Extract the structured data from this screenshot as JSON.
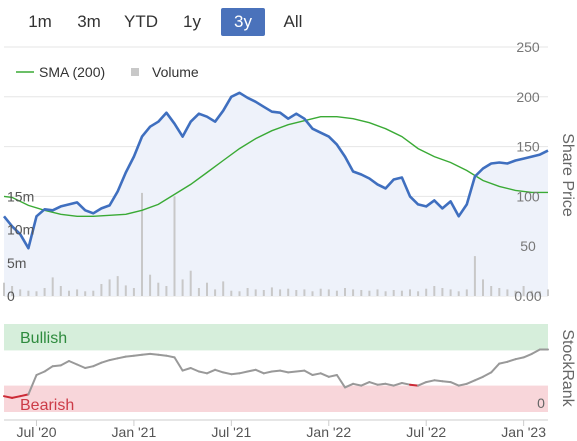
{
  "range_selector": {
    "buttons": [
      {
        "label": "1m",
        "active": false
      },
      {
        "label": "3m",
        "active": false
      },
      {
        "label": "YTD",
        "active": false
      },
      {
        "label": "1y",
        "active": false
      },
      {
        "label": "3y",
        "active": true
      },
      {
        "label": "All",
        "active": false
      }
    ]
  },
  "colors": {
    "price": "#3f6fbf",
    "sma": "#3aaa35",
    "volume": "#c8c8c8",
    "grid": "#e6e6e6",
    "price_area": "#eef2fa",
    "bullish_band": "#d6eedb",
    "bearish_band": "#f8d6da",
    "rank_neutral": "#999999",
    "rank_bearish": "#cc2a36",
    "bullish_text": "#2e8b3e",
    "bearish_text": "#cc3b47"
  },
  "chart_data": [
    {
      "type": "line",
      "legend": {
        "placement": "top-left",
        "items": [
          {
            "label": "SMA (200)",
            "marker": "line"
          },
          {
            "label": "Volume",
            "marker": "square"
          }
        ]
      },
      "y_right": {
        "label": "Share Price",
        "ticks": [
          "250",
          "200",
          "150",
          "100",
          "50",
          "0.00"
        ],
        "range": [
          0,
          250
        ]
      },
      "volume_axis": {
        "ticks": [
          "15m",
          "10m",
          "5m",
          "0"
        ],
        "range": [
          0,
          20
        ]
      },
      "x_axis": {
        "ticks": [
          "Jul '20",
          "Jan '21",
          "Jul '21",
          "Jan '22",
          "Jul '22",
          "Jan '23"
        ],
        "tick_positions": [
          0.5,
          6.5,
          12.5,
          18.5,
          24.5,
          30.5
        ],
        "range": [
          -1.5,
          32
        ]
      },
      "grid": true,
      "series": [
        {
          "name": "Price",
          "x": [
            -1.5,
            -1.0,
            -0.5,
            0.0,
            0.5,
            1.0,
            1.5,
            2.0,
            2.5,
            3.0,
            3.5,
            4.0,
            4.5,
            5.0,
            5.5,
            6.0,
            6.5,
            7.0,
            7.5,
            8.0,
            8.5,
            9.0,
            9.5,
            10.0,
            10.5,
            11.0,
            11.5,
            12.0,
            12.5,
            13.0,
            13.5,
            14.0,
            14.5,
            15.0,
            15.5,
            16.0,
            16.5,
            17.0,
            17.5,
            18.0,
            18.5,
            19.0,
            19.5,
            20.0,
            20.5,
            21.0,
            21.5,
            22.0,
            22.5,
            23.0,
            23.5,
            24.0,
            24.5,
            25.0,
            25.5,
            26.0,
            26.5,
            27.0,
            27.5,
            28.0,
            28.5,
            29.0,
            29.5,
            30.0,
            30.5,
            31.0,
            31.5,
            32.0
          ],
          "values": [
            80,
            70,
            62,
            48,
            80,
            87,
            86,
            90,
            92,
            94,
            86,
            83,
            88,
            91,
            105,
            124,
            140,
            160,
            170,
            175,
            184,
            173,
            160,
            175,
            183,
            180,
            175,
            186,
            200,
            204,
            199,
            195,
            190,
            185,
            184,
            178,
            183,
            178,
            168,
            164,
            160,
            152,
            140,
            125,
            122,
            118,
            112,
            108,
            117,
            119,
            100,
            92,
            90,
            96,
            88,
            95,
            80,
            92,
            120,
            128,
            133,
            134,
            133,
            136,
            138,
            140,
            142,
            146
          ]
        },
        {
          "name": "SMA (200)",
          "x": [
            -1.5,
            -1.0,
            0.0,
            1.0,
            2.0,
            3.0,
            4.0,
            5.0,
            6.0,
            7.0,
            8.0,
            9.0,
            10.0,
            11.0,
            12.0,
            13.0,
            14.0,
            15.0,
            16.0,
            17.0,
            18.0,
            19.0,
            20.0,
            21.0,
            22.0,
            23.0,
            24.0,
            25.0,
            26.0,
            27.0,
            28.0,
            29.0,
            30.0,
            31.0,
            32.0
          ],
          "values": [
            100,
            99,
            91,
            86,
            82,
            80,
            80,
            81,
            82,
            86,
            92,
            102,
            112,
            124,
            136,
            148,
            158,
            166,
            172,
            176,
            180,
            180,
            178,
            174,
            168,
            160,
            148,
            140,
            134,
            126,
            116,
            110,
            106,
            104,
            104
          ]
        },
        {
          "name": "Volume",
          "x": [
            -1.5,
            -1.0,
            -0.5,
            0.0,
            0.5,
            1.0,
            1.5,
            2.0,
            2.5,
            3.0,
            3.5,
            4.0,
            4.5,
            5.0,
            5.5,
            6.0,
            6.5,
            7.0,
            7.5,
            8.0,
            8.5,
            9.0,
            9.5,
            10.0,
            10.5,
            11.0,
            11.5,
            12.0,
            12.5,
            13.0,
            13.5,
            14.0,
            14.5,
            15.0,
            15.5,
            16.0,
            16.5,
            17.0,
            17.5,
            18.0,
            18.5,
            19.0,
            19.5,
            20.0,
            20.5,
            21.0,
            21.5,
            22.0,
            22.5,
            23.0,
            23.5,
            24.0,
            24.5,
            25.0,
            25.5,
            26.0,
            26.5,
            27.0,
            27.5,
            28.0,
            28.5,
            29.0,
            29.5,
            30.0,
            30.5,
            31.0,
            31.5,
            32.0
          ],
          "values": [
            2.0,
            1.5,
            1.0,
            0.8,
            0.7,
            1.2,
            2.8,
            1.5,
            0.8,
            1.0,
            0.7,
            0.8,
            1.8,
            2.5,
            3.0,
            1.6,
            1.2,
            15.5,
            3.2,
            2.0,
            1.5,
            15.0,
            2.5,
            3.8,
            1.2,
            2.0,
            1.0,
            2.2,
            0.8,
            0.7,
            1.2,
            1.0,
            0.9,
            1.3,
            1.0,
            1.1,
            0.9,
            1.0,
            0.7,
            1.1,
            1.0,
            0.8,
            1.2,
            1.0,
            0.9,
            0.8,
            1.0,
            0.7,
            0.9,
            0.8,
            1.0,
            0.7,
            1.1,
            1.5,
            1.2,
            1.0,
            0.7,
            1.0,
            6.0,
            2.5,
            1.5,
            1.2,
            1.0,
            0.8,
            1.5,
            0.8,
            0.7,
            1.0
          ]
        }
      ]
    },
    {
      "type": "line",
      "y_right": {
        "label": "StockRank",
        "ticks": [
          "0"
        ],
        "range": [
          0,
          100
        ]
      },
      "bands": [
        {
          "label": "Bullish",
          "from": 70,
          "to": 100
        },
        {
          "label": "Bearish",
          "from": 0,
          "to": 30
        }
      ],
      "series": [
        {
          "name": "StockRank",
          "x": [
            -1.5,
            -1.0,
            -0.5,
            0.0,
            0.5,
            1.0,
            1.5,
            2.0,
            2.5,
            3.0,
            3.5,
            4.0,
            4.5,
            5.0,
            5.5,
            6.0,
            6.5,
            7.0,
            7.5,
            8.0,
            8.5,
            9.0,
            9.5,
            10.0,
            10.5,
            11.0,
            11.5,
            12.0,
            12.5,
            13.0,
            13.5,
            14.0,
            14.5,
            15.0,
            15.5,
            16.0,
            16.5,
            17.0,
            17.5,
            18.0,
            18.5,
            19.0,
            19.5,
            20.0,
            20.5,
            21.0,
            21.5,
            22.0,
            22.5,
            23.0,
            23.5,
            24.0,
            24.5,
            25.0,
            25.5,
            26.0,
            26.5,
            27.0,
            27.5,
            28.0,
            28.5,
            29.0,
            29.5,
            30.0,
            30.5,
            31.0,
            31.5,
            32.0
          ],
          "values": [
            18,
            16,
            18,
            20,
            42,
            46,
            52,
            53,
            58,
            54,
            50,
            52,
            56,
            59,
            61,
            63,
            64,
            65,
            66,
            65,
            64,
            62,
            47,
            50,
            46,
            44,
            48,
            45,
            43,
            44,
            46,
            48,
            44,
            46,
            47,
            45,
            46,
            47,
            42,
            44,
            40,
            42,
            28,
            32,
            30,
            34,
            31,
            32,
            30,
            33,
            31,
            30,
            34,
            36,
            35,
            34,
            30,
            32,
            36,
            40,
            45,
            55,
            57,
            60,
            62,
            66,
            71,
            71
          ]
        }
      ]
    }
  ],
  "x_ticks_unused": []
}
